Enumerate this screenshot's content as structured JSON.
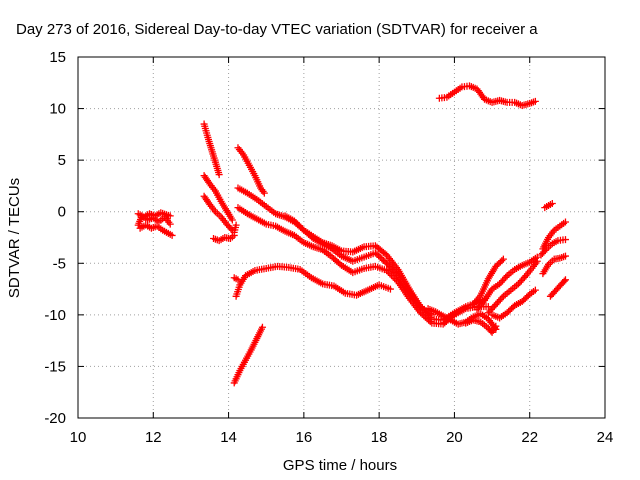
{
  "chart_data": {
    "type": "scatter",
    "title": "Day 273 of 2016, Sidereal Day-to-day VTEC variation (SDTVAR) for receiver a",
    "xlabel": "GPS time / hours",
    "ylabel": "SDTVAR / TECUs",
    "xlim": [
      10,
      24
    ],
    "ylim": [
      -20,
      15
    ],
    "xticks": [
      "10",
      "12",
      "14",
      "16",
      "18",
      "20",
      "22",
      "24"
    ],
    "yticks": [
      "15",
      "10",
      "5",
      "0",
      "-5",
      "-10",
      "-15",
      "-20"
    ],
    "grid": true,
    "legend": "none",
    "marker": "plus",
    "color": "#ff0000",
    "series": [
      {
        "points": [
          [
            11.6,
            -1.3
          ],
          [
            11.7,
            -0.4
          ],
          [
            11.85,
            -0.8
          ],
          [
            12.0,
            -0.6
          ],
          [
            12.15,
            -1.0
          ],
          [
            12.3,
            -0.5
          ],
          [
            12.45,
            -1.2
          ]
        ]
      },
      {
        "points": [
          [
            11.6,
            -0.2
          ],
          [
            11.75,
            -0.5
          ],
          [
            11.9,
            -0.2
          ],
          [
            12.05,
            -0.4
          ],
          [
            12.2,
            -0.1
          ],
          [
            12.35,
            -0.3
          ],
          [
            12.45,
            -0.4
          ]
        ]
      },
      {
        "points": [
          [
            11.65,
            -1.6
          ],
          [
            11.8,
            -1.3
          ],
          [
            11.95,
            -1.6
          ],
          [
            12.1,
            -1.4
          ],
          [
            12.25,
            -1.8
          ],
          [
            12.4,
            -2.1
          ],
          [
            12.5,
            -2.3
          ]
        ]
      },
      {
        "points": [
          [
            13.35,
            8.5
          ],
          [
            13.45,
            7.2
          ],
          [
            13.55,
            6.0
          ],
          [
            13.65,
            4.8
          ],
          [
            13.75,
            3.6
          ]
        ]
      },
      {
        "points": [
          [
            13.35,
            3.5
          ],
          [
            13.5,
            2.7
          ],
          [
            13.65,
            2.0
          ],
          [
            13.8,
            1.0
          ],
          [
            13.95,
            0.1
          ],
          [
            14.1,
            -0.8
          ]
        ]
      },
      {
        "points": [
          [
            13.35,
            1.5
          ],
          [
            13.5,
            0.7
          ],
          [
            13.65,
            0.0
          ],
          [
            13.8,
            -0.5
          ],
          [
            13.95,
            -1.2
          ],
          [
            14.1,
            -1.8
          ]
        ]
      },
      {
        "points": [
          [
            13.6,
            -2.6
          ],
          [
            13.75,
            -2.8
          ],
          [
            13.9,
            -2.5
          ],
          [
            14.05,
            -2.6
          ],
          [
            14.15,
            -2.3
          ]
        ]
      },
      {
        "points": [
          [
            14.15,
            -2.0
          ],
          [
            14.2,
            -1.3
          ]
        ]
      },
      {
        "points": [
          [
            14.15,
            -6.4
          ],
          [
            14.25,
            -6.6
          ]
        ]
      },
      {
        "points": [
          [
            14.25,
            6.2
          ],
          [
            14.4,
            5.5
          ],
          [
            14.55,
            4.5
          ],
          [
            14.7,
            3.5
          ],
          [
            14.85,
            2.3
          ],
          [
            14.95,
            1.8
          ]
        ]
      },
      {
        "points": [
          [
            14.25,
            2.3
          ],
          [
            14.5,
            1.8
          ],
          [
            14.75,
            1.2
          ],
          [
            15.0,
            0.5
          ],
          [
            15.25,
            -0.2
          ],
          [
            15.5,
            -0.5
          ],
          [
            15.75,
            -1.0
          ],
          [
            16.0,
            -1.8
          ],
          [
            16.25,
            -2.6
          ],
          [
            16.5,
            -3.1
          ],
          [
            16.75,
            -3.6
          ],
          [
            17.0,
            -4.3
          ],
          [
            17.3,
            -4.8
          ],
          [
            17.6,
            -4.4
          ],
          [
            17.9,
            -4.0
          ],
          [
            18.2,
            -5.0
          ],
          [
            18.5,
            -6.2
          ],
          [
            18.8,
            -7.8
          ],
          [
            19.1,
            -9.3
          ],
          [
            19.4,
            -10.4
          ],
          [
            19.7,
            -10.5
          ],
          [
            20.0,
            -9.8
          ],
          [
            20.3,
            -9.2
          ],
          [
            20.6,
            -8.8
          ],
          [
            20.8,
            -8.5
          ]
        ]
      },
      {
        "points": [
          [
            14.25,
            0.4
          ],
          [
            14.5,
            -0.2
          ],
          [
            14.75,
            -0.7
          ],
          [
            15.0,
            -1.2
          ],
          [
            15.25,
            -1.4
          ],
          [
            15.5,
            -1.9
          ],
          [
            15.75,
            -2.3
          ],
          [
            16.0,
            -3.0
          ],
          [
            16.25,
            -3.4
          ],
          [
            16.5,
            -3.7
          ],
          [
            16.75,
            -4.4
          ],
          [
            17.0,
            -5.2
          ],
          [
            17.3,
            -5.9
          ],
          [
            17.6,
            -5.5
          ],
          [
            17.9,
            -5.3
          ],
          [
            18.2,
            -5.7
          ],
          [
            18.5,
            -6.8
          ],
          [
            18.8,
            -8.4
          ],
          [
            19.1,
            -9.8
          ],
          [
            19.4,
            -10.8
          ],
          [
            19.7,
            -10.9
          ],
          [
            20.0,
            -10.0
          ],
          [
            20.3,
            -9.4
          ],
          [
            20.6,
            -9.2
          ],
          [
            20.9,
            -9.2
          ]
        ]
      },
      {
        "points": [
          [
            15.5,
            -0.4
          ],
          [
            15.75,
            -0.9
          ],
          [
            16.0,
            -1.8
          ],
          [
            16.25,
            -2.4
          ],
          [
            16.5,
            -3.0
          ],
          [
            16.75,
            -3.3
          ],
          [
            17.0,
            -3.8
          ],
          [
            17.3,
            -3.9
          ],
          [
            17.6,
            -3.4
          ],
          [
            17.9,
            -3.3
          ],
          [
            18.2,
            -4.2
          ],
          [
            18.5,
            -5.6
          ],
          [
            18.8,
            -7.5
          ],
          [
            19.1,
            -9.2
          ],
          [
            19.4,
            -10.0
          ]
        ]
      },
      {
        "points": [
          [
            14.2,
            -8.2
          ],
          [
            14.3,
            -7.1
          ],
          [
            14.45,
            -6.2
          ],
          [
            14.7,
            -5.7
          ],
          [
            15.0,
            -5.5
          ],
          [
            15.3,
            -5.3
          ],
          [
            15.6,
            -5.4
          ],
          [
            15.9,
            -5.6
          ],
          [
            16.2,
            -6.4
          ],
          [
            16.5,
            -7.0
          ],
          [
            16.8,
            -7.2
          ],
          [
            17.1,
            -7.9
          ],
          [
            17.4,
            -8.1
          ],
          [
            17.7,
            -7.6
          ],
          [
            18.0,
            -7.1
          ],
          [
            18.3,
            -7.5
          ]
        ]
      },
      {
        "points": [
          [
            14.15,
            -16.6
          ],
          [
            14.3,
            -15.4
          ],
          [
            14.45,
            -14.4
          ],
          [
            14.6,
            -13.4
          ],
          [
            14.75,
            -12.3
          ],
          [
            14.9,
            -11.2
          ]
        ]
      },
      {
        "points": [
          [
            19.6,
            11.0
          ],
          [
            19.8,
            11.1
          ],
          [
            20.0,
            11.6
          ],
          [
            20.2,
            12.1
          ],
          [
            20.4,
            12.2
          ],
          [
            20.6,
            11.9
          ],
          [
            20.8,
            10.9
          ],
          [
            21.0,
            10.6
          ],
          [
            21.2,
            10.8
          ],
          [
            21.4,
            10.6
          ],
          [
            21.6,
            10.6
          ],
          [
            21.8,
            10.3
          ],
          [
            22.0,
            10.5
          ],
          [
            22.15,
            10.7
          ]
        ]
      },
      {
        "points": [
          [
            19.3,
            -9.4
          ],
          [
            19.5,
            -9.7
          ],
          [
            19.7,
            -10.1
          ],
          [
            19.9,
            -10.5
          ],
          [
            20.1,
            -10.9
          ],
          [
            20.3,
            -10.7
          ],
          [
            20.5,
            -10.2
          ],
          [
            20.7,
            -9.9
          ],
          [
            20.9,
            -10.4
          ],
          [
            21.1,
            -11.4
          ]
        ]
      },
      {
        "points": [
          [
            20.3,
            -10.8
          ],
          [
            20.5,
            -10.5
          ],
          [
            20.7,
            -10.7
          ],
          [
            20.9,
            -11.3
          ],
          [
            21.0,
            -11.7
          ],
          [
            21.1,
            -11.1
          ]
        ]
      },
      {
        "points": [
          [
            20.5,
            -9.0
          ],
          [
            20.7,
            -8.1
          ],
          [
            20.9,
            -6.5
          ],
          [
            21.1,
            -5.3
          ],
          [
            21.3,
            -4.6
          ]
        ]
      },
      {
        "points": [
          [
            20.6,
            -9.5
          ],
          [
            20.8,
            -8.6
          ],
          [
            21.0,
            -7.5
          ],
          [
            21.2,
            -7.0
          ],
          [
            21.4,
            -6.2
          ],
          [
            21.6,
            -5.6
          ],
          [
            21.8,
            -5.2
          ],
          [
            22.0,
            -4.9
          ],
          [
            22.2,
            -4.4
          ]
        ]
      },
      {
        "points": [
          [
            20.9,
            -9.8
          ],
          [
            21.1,
            -9.0
          ],
          [
            21.3,
            -8.2
          ],
          [
            21.5,
            -7.6
          ],
          [
            21.7,
            -7.0
          ],
          [
            21.9,
            -6.2
          ],
          [
            22.1,
            -5.3
          ],
          [
            22.2,
            -4.8
          ]
        ]
      },
      {
        "points": [
          [
            21.0,
            -10.0
          ],
          [
            21.2,
            -10.3
          ],
          [
            21.4,
            -9.8
          ],
          [
            21.6,
            -9.1
          ],
          [
            21.8,
            -8.7
          ],
          [
            22.0,
            -8.0
          ],
          [
            22.15,
            -7.6
          ]
        ]
      },
      {
        "points": [
          [
            22.3,
            -4.2
          ],
          [
            22.45,
            -3.6
          ],
          [
            22.6,
            -3.1
          ],
          [
            22.75,
            -2.8
          ],
          [
            22.95,
            -2.7
          ]
        ]
      },
      {
        "points": [
          [
            22.35,
            -3.6
          ],
          [
            22.5,
            -2.5
          ],
          [
            22.65,
            -1.8
          ],
          [
            22.8,
            -1.4
          ],
          [
            22.95,
            -1.0
          ]
        ]
      },
      {
        "points": [
          [
            22.35,
            -6.0
          ],
          [
            22.5,
            -5.1
          ],
          [
            22.65,
            -4.6
          ],
          [
            22.8,
            -4.5
          ],
          [
            22.95,
            -4.3
          ]
        ]
      },
      {
        "points": [
          [
            22.55,
            -8.2
          ],
          [
            22.7,
            -7.6
          ],
          [
            22.85,
            -7.0
          ],
          [
            22.95,
            -6.6
          ]
        ]
      },
      {
        "points": [
          [
            22.4,
            0.4
          ],
          [
            22.5,
            0.6
          ],
          [
            22.6,
            0.8
          ]
        ]
      }
    ]
  }
}
